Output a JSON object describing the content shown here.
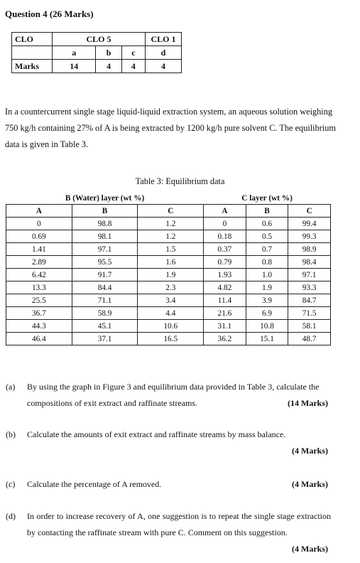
{
  "question": {
    "title": "Question 4 (26 Marks)"
  },
  "clo_table": {
    "row1": {
      "label": "CLO",
      "clo5": "CLO 5",
      "clo1": "CLO 1"
    },
    "row2": [
      "a",
      "b",
      "c",
      "d"
    ],
    "row3": {
      "label": "Marks",
      "values": [
        "14",
        "4",
        "4",
        "4"
      ]
    }
  },
  "intro": "In a countercurrent single stage liquid-liquid extraction system, an aqueous solution weighing 750 kg/h containing 27% of A is being extracted by 1200 kg/h pure solvent C. The equilibrium data is given in Table 3.",
  "table3": {
    "caption": "Table 3: Equilibrium data",
    "group_headers": [
      "B (Water) layer (wt %)",
      "C layer (wt %)"
    ],
    "columns": [
      "A",
      "B",
      "C",
      "A",
      "B",
      "C"
    ],
    "rows": [
      [
        "0",
        "98.8",
        "1.2",
        "0",
        "0.6",
        "99.4"
      ],
      [
        "0.69",
        "98.1",
        "1.2",
        "0.18",
        "0.5",
        "99.3"
      ],
      [
        "1.41",
        "97.1",
        "1.5",
        "0.37",
        "0.7",
        "98.9"
      ],
      [
        "2.89",
        "95.5",
        "1.6",
        "0.79",
        "0.8",
        "98.4"
      ],
      [
        "6.42",
        "91.7",
        "1.9",
        "1.93",
        "1.0",
        "97.1"
      ],
      [
        "13.3",
        "84.4",
        "2.3",
        "4.82",
        "1.9",
        "93.3"
      ],
      [
        "25.5",
        "71.1",
        "3.4",
        "11.4",
        "3.9",
        "84.7"
      ],
      [
        "36.7",
        "58.9",
        "4.4",
        "21.6",
        "6.9",
        "71.5"
      ],
      [
        "44.3",
        "45.1",
        "10.6",
        "31.1",
        "10.8",
        "58.1"
      ],
      [
        "46.4",
        "37.1",
        "16.5",
        "36.2",
        "15.1",
        "48.7"
      ]
    ]
  },
  "parts": [
    {
      "label": "(a)",
      "text": "By using the graph in Figure 3 and equilibrium data provided in Table 3, calculate the compositions of exit extract and raffinate streams.",
      "marks": "(14 Marks)"
    },
    {
      "label": "(b)",
      "text": "Calculate the amounts of exit extract and raffinate streams by mass balance.",
      "marks": "(4 Marks)"
    },
    {
      "label": "(c)",
      "text": "Calculate the percentage of A removed.",
      "marks": "(4 Marks)"
    },
    {
      "label": "(d)",
      "text": "In order to increase recovery of A, one suggestion is to repeat the single stage extraction by contacting the raffinate stream with pure C. Comment on this suggestion.",
      "marks": "(4 Marks)"
    }
  ]
}
